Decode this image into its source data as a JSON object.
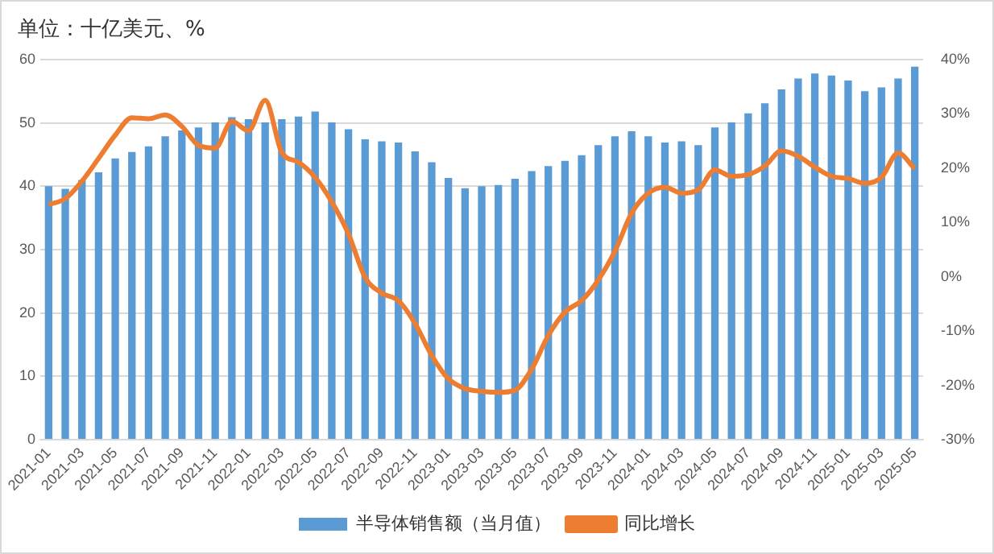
{
  "chart_data": {
    "type": "bar",
    "title": "单位：十亿美元、%",
    "categories": [
      "2021-01",
      null,
      "2021-03",
      null,
      "2021-05",
      null,
      "2021-07",
      null,
      "2021-09",
      null,
      "2021-11",
      null,
      "2022-01",
      null,
      "2022-03",
      null,
      "2022-05",
      null,
      "2022-07",
      null,
      "2022-09",
      null,
      "2022-11",
      null,
      "2023-01",
      null,
      "2023-03",
      null,
      "2023-05",
      null,
      "2023-07",
      null,
      "2023-09",
      null,
      "2023-11",
      null,
      "2024-01",
      null,
      "2024-03",
      null,
      "2024-05",
      null,
      "2024-07",
      null,
      "2024-09",
      null,
      "2024-11",
      null,
      "2025-01",
      null,
      "2025-03",
      null,
      "2025-05"
    ],
    "series": [
      {
        "name": "半导体销售额（当月值）",
        "color": "#5b9bd5",
        "values": [
          40.0,
          39.6,
          41.0,
          42.2,
          44.4,
          45.4,
          46.3,
          47.9,
          48.8,
          49.3,
          50.1,
          50.9,
          50.6,
          50.1,
          50.6,
          51.0,
          51.8,
          50.1,
          49.0,
          47.4,
          47.1,
          46.9,
          45.5,
          43.8,
          41.3,
          39.7,
          40.0,
          40.2,
          41.2,
          42.4,
          43.2,
          44.0,
          44.9,
          46.5,
          47.9,
          48.7,
          47.9,
          46.9,
          47.1,
          46.5,
          49.3,
          50.1,
          51.5,
          53.1,
          55.3,
          57.0,
          57.8,
          57.5,
          56.7,
          55.0,
          55.6,
          57.0,
          58.9
        ]
      },
      {
        "name": "同比增长",
        "type": "line",
        "axis": "y2",
        "color": "#ed7d31",
        "values": [
          13.3,
          14.4,
          17.6,
          21.8,
          26.1,
          29.3,
          29.1,
          29.8,
          27.7,
          24.2,
          23.7,
          28.6,
          26.9,
          32.5,
          22.9,
          21.1,
          18.3,
          13.8,
          7.9,
          -0.1,
          -3.0,
          -4.4,
          -8.6,
          -14.5,
          -18.8,
          -20.6,
          -21.1,
          -21.3,
          -20.9,
          -17.0,
          -10.8,
          -6.5,
          -4.4,
          -0.6,
          4.7,
          11.7,
          15.4,
          16.5,
          15.4,
          16.0,
          19.7,
          18.5,
          18.8,
          20.4,
          23.2,
          22.2,
          20.2,
          18.5,
          18.1,
          17.2,
          18.3,
          22.8,
          19.9
        ]
      }
    ],
    "ylim": [
      0,
      60
    ],
    "yticks": [
      0,
      10,
      20,
      30,
      40,
      50,
      60
    ],
    "y2lim": [
      -30,
      40
    ],
    "y2ticks": [
      {
        "value": -30,
        "label": "-30%"
      },
      {
        "value": -20,
        "label": "-20%"
      },
      {
        "value": -10,
        "label": "-10%"
      },
      {
        "value": 0,
        "label": "0%"
      },
      {
        "value": 10,
        "label": "10%"
      },
      {
        "value": 20,
        "label": "20%"
      },
      {
        "value": 30,
        "label": "30%"
      },
      {
        "value": 40,
        "label": "40%"
      }
    ],
    "grid": "y",
    "legend": "bottom",
    "marker": "none"
  }
}
